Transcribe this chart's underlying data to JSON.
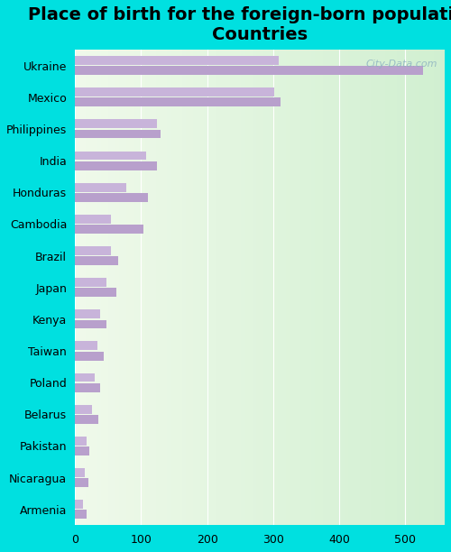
{
  "title": "Place of birth for the foreign-born population -\nCountries",
  "countries": [
    "Ukraine",
    "Mexico",
    "Philippines",
    "India",
    "Honduras",
    "Cambodia",
    "Brazil",
    "Japan",
    "Kenya",
    "Taiwan",
    "Poland",
    "Belarus",
    "Pakistan",
    "Nicaragua",
    "Armenia"
  ],
  "values1": [
    527,
    311,
    130,
    124,
    110,
    103,
    65,
    62,
    48,
    44,
    38,
    35,
    22,
    20,
    18
  ],
  "values2": [
    308,
    301,
    124,
    107,
    78,
    55,
    55,
    47,
    38,
    34,
    30,
    25,
    18,
    15,
    12
  ],
  "bar_color": "#b8a0cc",
  "bar_color2": "#c8b4da",
  "background_outer": "#00e0e0",
  "xlim": [
    0,
    560
  ],
  "title_fontsize": 14,
  "tick_fontsize": 9,
  "label_fontsize": 9,
  "watermark": "City-Data.com"
}
